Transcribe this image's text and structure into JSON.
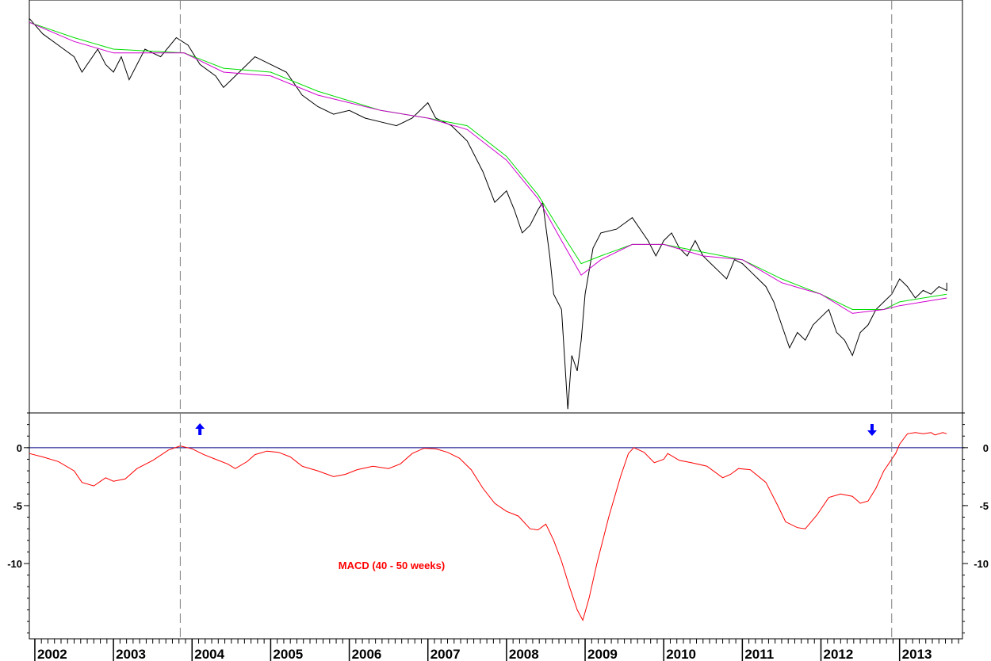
{
  "chart_data": [
    {
      "panel": "price",
      "type": "line",
      "title": "",
      "xlabel": "",
      "ylabel": "",
      "y_axis_labels": "none shown",
      "series": [
        {
          "name": "",
          "color": "#000000",
          "points": [
            [
              2001.93,
              100
            ],
            [
              2002.1,
              96
            ],
            [
              2002.3,
              93
            ],
            [
              2002.5,
              90
            ],
            [
              2002.6,
              86
            ],
            [
              2002.8,
              92
            ],
            [
              2002.9,
              88
            ],
            [
              2003.0,
              86
            ],
            [
              2003.1,
              90
            ],
            [
              2003.2,
              84
            ],
            [
              2003.4,
              92
            ],
            [
              2003.6,
              90
            ],
            [
              2003.8,
              95
            ],
            [
              2003.95,
              93
            ],
            [
              2004.1,
              88
            ],
            [
              2004.3,
              85
            ],
            [
              2004.4,
              82
            ],
            [
              2004.6,
              86
            ],
            [
              2004.8,
              90
            ],
            [
              2005.0,
              88
            ],
            [
              2005.2,
              86
            ],
            [
              2005.4,
              80
            ],
            [
              2005.6,
              77
            ],
            [
              2005.8,
              75
            ],
            [
              2006.0,
              76
            ],
            [
              2006.2,
              74
            ],
            [
              2006.4,
              73
            ],
            [
              2006.6,
              72
            ],
            [
              2006.8,
              74
            ],
            [
              2007.0,
              78
            ],
            [
              2007.1,
              74
            ],
            [
              2007.3,
              72
            ],
            [
              2007.5,
              68
            ],
            [
              2007.7,
              60
            ],
            [
              2007.85,
              52
            ],
            [
              2008.0,
              55
            ],
            [
              2008.1,
              50
            ],
            [
              2008.2,
              44
            ],
            [
              2008.3,
              46
            ],
            [
              2008.4,
              50
            ],
            [
              2008.46,
              52
            ],
            [
              2008.55,
              38
            ],
            [
              2008.6,
              28
            ],
            [
              2008.7,
              24
            ],
            [
              2008.78,
              -2
            ],
            [
              2008.83,
              12
            ],
            [
              2008.9,
              8
            ],
            [
              2008.95,
              16
            ],
            [
              2009.0,
              28
            ],
            [
              2009.1,
              40
            ],
            [
              2009.2,
              44
            ],
            [
              2009.4,
              45
            ],
            [
              2009.6,
              48
            ],
            [
              2009.8,
              42
            ],
            [
              2009.9,
              38
            ],
            [
              2010.0,
              42
            ],
            [
              2010.1,
              44
            ],
            [
              2010.2,
              40
            ],
            [
              2010.3,
              38
            ],
            [
              2010.4,
              42
            ],
            [
              2010.5,
              38
            ],
            [
              2010.6,
              36
            ],
            [
              2010.7,
              34
            ],
            [
              2010.8,
              32
            ],
            [
              2010.9,
              37
            ],
            [
              2011.0,
              36
            ],
            [
              2011.1,
              34
            ],
            [
              2011.2,
              32
            ],
            [
              2011.3,
              30
            ],
            [
              2011.4,
              26
            ],
            [
              2011.5,
              20
            ],
            [
              2011.6,
              14
            ],
            [
              2011.7,
              18
            ],
            [
              2011.8,
              16
            ],
            [
              2011.9,
              20
            ],
            [
              2012.0,
              22
            ],
            [
              2012.1,
              24
            ],
            [
              2012.2,
              18
            ],
            [
              2012.3,
              16
            ],
            [
              2012.4,
              12
            ],
            [
              2012.5,
              18
            ],
            [
              2012.6,
              20
            ],
            [
              2012.7,
              24
            ],
            [
              2012.8,
              26
            ],
            [
              2012.9,
              28
            ],
            [
              2013.0,
              32
            ],
            [
              2013.1,
              30
            ],
            [
              2013.2,
              27
            ],
            [
              2013.3,
              29
            ],
            [
              2013.4,
              28
            ],
            [
              2013.5,
              30
            ],
            [
              2013.6,
              29
            ],
            [
              2013.6,
              31
            ]
          ]
        },
        {
          "name": "",
          "color": "#00dd00",
          "points": [
            [
              2001.93,
              99
            ],
            [
              2002.5,
              95
            ],
            [
              2003.0,
              92
            ],
            [
              2003.9,
              91
            ],
            [
              2004.4,
              87
            ],
            [
              2005.0,
              86
            ],
            [
              2005.6,
              81
            ],
            [
              2006.4,
              76
            ],
            [
              2007.0,
              74
            ],
            [
              2007.5,
              72
            ],
            [
              2008.0,
              64
            ],
            [
              2008.4,
              54
            ],
            [
              2008.7,
              44
            ],
            [
              2008.95,
              36
            ],
            [
              2009.2,
              38
            ],
            [
              2009.6,
              41
            ],
            [
              2010.0,
              41
            ],
            [
              2010.5,
              39
            ],
            [
              2011.0,
              37
            ],
            [
              2011.5,
              32
            ],
            [
              2012.0,
              28
            ],
            [
              2012.4,
              24
            ],
            [
              2012.8,
              24
            ],
            [
              2013.0,
              26
            ],
            [
              2013.3,
              27
            ],
            [
              2013.6,
              28
            ]
          ]
        },
        {
          "name": "",
          "color": "#d000d0",
          "points": [
            [
              2001.93,
              99
            ],
            [
              2002.5,
              94
            ],
            [
              2003.0,
              91
            ],
            [
              2003.9,
              91
            ],
            [
              2004.4,
              86
            ],
            [
              2005.0,
              85
            ],
            [
              2005.6,
              80
            ],
            [
              2006.4,
              76
            ],
            [
              2007.0,
              74
            ],
            [
              2007.5,
              71
            ],
            [
              2008.0,
              63
            ],
            [
              2008.4,
              53
            ],
            [
              2008.7,
              42
            ],
            [
              2008.95,
              33
            ],
            [
              2009.2,
              37
            ],
            [
              2009.6,
              41
            ],
            [
              2010.0,
              41
            ],
            [
              2010.5,
              38
            ],
            [
              2011.0,
              37
            ],
            [
              2011.5,
              31
            ],
            [
              2012.0,
              28
            ],
            [
              2012.4,
              23
            ],
            [
              2012.8,
              24
            ],
            [
              2013.0,
              25
            ],
            [
              2013.3,
              26
            ],
            [
              2013.6,
              27
            ]
          ]
        }
      ],
      "ylim": [
        -3,
        104
      ],
      "xlim": [
        2001.93,
        2013.8
      ]
    },
    {
      "panel": "indicator",
      "type": "line",
      "annotation": "MACD (40 - 50 weeks)",
      "xlabel": "",
      "ylabel": "",
      "yticks": [
        0,
        -5,
        -10
      ],
      "ylim": [
        -16.5,
        3
      ],
      "xlim": [
        2001.93,
        2013.8
      ],
      "x_tick_labels": [
        "2002",
        "2003",
        "2004",
        "2005",
        "2006",
        "2007",
        "2008",
        "2009",
        "2010",
        "2011",
        "2012",
        "2013"
      ],
      "zero_line_color": "#000080",
      "signal_lines": [
        2003.85,
        2012.9
      ],
      "signal_arrows": [
        {
          "x": 2004.1,
          "direction": "up",
          "color": "#0000ff"
        },
        {
          "x": 2012.65,
          "direction": "down",
          "color": "#0000ff"
        }
      ],
      "series": [
        {
          "name": "",
          "color": "#ff0000",
          "points": [
            [
              2001.93,
              -0.5
            ],
            [
              2002.1,
              -0.8
            ],
            [
              2002.3,
              -1.2
            ],
            [
              2002.5,
              -2
            ],
            [
              2002.6,
              -3
            ],
            [
              2002.75,
              -3.3
            ],
            [
              2002.9,
              -2.6
            ],
            [
              2003.0,
              -2.9
            ],
            [
              2003.15,
              -2.7
            ],
            [
              2003.3,
              -1.8
            ],
            [
              2003.5,
              -1.1
            ],
            [
              2003.7,
              -0.2
            ],
            [
              2003.85,
              0.15
            ],
            [
              2004.0,
              -0.1
            ],
            [
              2004.15,
              -0.6
            ],
            [
              2004.3,
              -1.0
            ],
            [
              2004.45,
              -1.4
            ],
            [
              2004.55,
              -1.8
            ],
            [
              2004.7,
              -1.2
            ],
            [
              2004.8,
              -0.6
            ],
            [
              2004.95,
              -0.3
            ],
            [
              2005.1,
              -0.4
            ],
            [
              2005.25,
              -0.8
            ],
            [
              2005.4,
              -1.6
            ],
            [
              2005.6,
              -2.0
            ],
            [
              2005.8,
              -2.5
            ],
            [
              2005.95,
              -2.3
            ],
            [
              2006.1,
              -1.9
            ],
            [
              2006.3,
              -1.6
            ],
            [
              2006.5,
              -1.8
            ],
            [
              2006.65,
              -1.4
            ],
            [
              2006.8,
              -0.5
            ],
            [
              2006.95,
              -0.05
            ],
            [
              2007.1,
              -0.1
            ],
            [
              2007.25,
              -0.4
            ],
            [
              2007.4,
              -0.9
            ],
            [
              2007.55,
              -1.9
            ],
            [
              2007.7,
              -3.5
            ],
            [
              2007.85,
              -4.8
            ],
            [
              2008.0,
              -5.5
            ],
            [
              2008.15,
              -5.9
            ],
            [
              2008.3,
              -7.0
            ],
            [
              2008.4,
              -7.1
            ],
            [
              2008.5,
              -6.6
            ],
            [
              2008.6,
              -8.0
            ],
            [
              2008.7,
              -9.8
            ],
            [
              2008.8,
              -12.0
            ],
            [
              2008.9,
              -14.0
            ],
            [
              2008.97,
              -14.9
            ],
            [
              2009.05,
              -13.0
            ],
            [
              2009.15,
              -10.0
            ],
            [
              2009.3,
              -6.0
            ],
            [
              2009.45,
              -2.5
            ],
            [
              2009.55,
              -0.5
            ],
            [
              2009.62,
              0.0
            ],
            [
              2009.75,
              -0.4
            ],
            [
              2009.88,
              -1.3
            ],
            [
              2010.0,
              -1.0
            ],
            [
              2010.05,
              -0.5
            ],
            [
              2010.2,
              -1.1
            ],
            [
              2010.35,
              -1.3
            ],
            [
              2010.55,
              -1.6
            ],
            [
              2010.75,
              -2.6
            ],
            [
              2010.85,
              -2.3
            ],
            [
              2010.95,
              -1.8
            ],
            [
              2011.1,
              -1.9
            ],
            [
              2011.3,
              -3.0
            ],
            [
              2011.45,
              -5.0
            ],
            [
              2011.55,
              -6.4
            ],
            [
              2011.7,
              -6.9
            ],
            [
              2011.8,
              -7.0
            ],
            [
              2011.95,
              -5.8
            ],
            [
              2012.1,
              -4.3
            ],
            [
              2012.25,
              -4.0
            ],
            [
              2012.4,
              -4.2
            ],
            [
              2012.5,
              -4.8
            ],
            [
              2012.6,
              -4.6
            ],
            [
              2012.7,
              -3.5
            ],
            [
              2012.8,
              -2.0
            ],
            [
              2012.95,
              -0.5
            ],
            [
              2013.0,
              0.3
            ],
            [
              2013.1,
              1.2
            ],
            [
              2013.2,
              1.3
            ],
            [
              2013.3,
              1.2
            ],
            [
              2013.4,
              1.3
            ],
            [
              2013.45,
              1.1
            ],
            [
              2013.55,
              1.3
            ],
            [
              2013.6,
              1.2
            ]
          ]
        }
      ]
    }
  ]
}
